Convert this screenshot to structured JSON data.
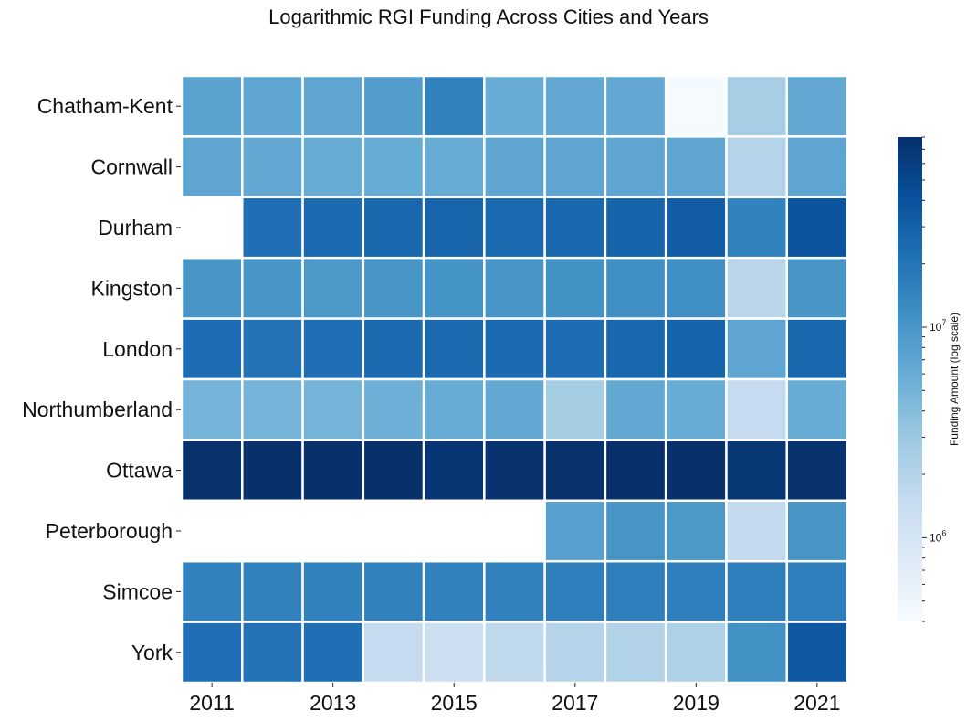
{
  "chart_data": {
    "type": "heatmap",
    "title": "Logarithmic RGI Funding Across Cities and Years",
    "colorbar_label": "Funding Amount (log scale)",
    "colorbar_scale": "log",
    "colorbar_range": [
      400000,
      80000000
    ],
    "colorbar_ticks": [
      {
        "value": 1000000,
        "base": "10",
        "exp": "6"
      },
      {
        "value": 10000000,
        "base": "10",
        "exp": "7"
      }
    ],
    "colormap": [
      "#f7fbff",
      "#deebf7",
      "#c6dbef",
      "#9ecae1",
      "#6baed6",
      "#4292c6",
      "#2171b5",
      "#08519c",
      "#08306b"
    ],
    "missing_color": "#ffffff",
    "years": [
      2011,
      2012,
      2013,
      2014,
      2015,
      2016,
      2017,
      2018,
      2019,
      2020,
      2021
    ],
    "x_tick_labels": [
      "2011",
      "",
      "2013",
      "",
      "2015",
      "",
      "2017",
      "",
      "2019",
      "",
      "2021"
    ],
    "cities": [
      "Chatham-Kent",
      "Cornwall",
      "Durham",
      "Kingston",
      "London",
      "Northumberland",
      "Ottawa",
      "Peterborough",
      "Simcoe",
      "York"
    ],
    "values": [
      [
        7500000,
        7000000,
        7000000,
        8500000,
        15000000,
        6000000,
        6500000,
        6500000,
        420000,
        2500000,
        6500000
      ],
      [
        7000000,
        6500000,
        6000000,
        6000000,
        6000000,
        7000000,
        7000000,
        7000000,
        7000000,
        2000000,
        7000000
      ],
      [
        null,
        22000000,
        24000000,
        26000000,
        27000000,
        25000000,
        26000000,
        28000000,
        32000000,
        15000000,
        38000000
      ],
      [
        10000000,
        10000000,
        9500000,
        10000000,
        10500000,
        10000000,
        11000000,
        11500000,
        11500000,
        1800000,
        10000000
      ],
      [
        23000000,
        21000000,
        22000000,
        25000000,
        25000000,
        24000000,
        23000000,
        26000000,
        28000000,
        7000000,
        26000000
      ],
      [
        5000000,
        5000000,
        5000000,
        5500000,
        6000000,
        6500000,
        2600000,
        6500000,
        6000000,
        1500000,
        6000000
      ],
      [
        78000000,
        80000000,
        80000000,
        82000000,
        72000000,
        76000000,
        78000000,
        80000000,
        80000000,
        70000000,
        76000000
      ],
      [
        null,
        null,
        null,
        null,
        null,
        null,
        8000000,
        10000000,
        9500000,
        1600000,
        10000000
      ],
      [
        15000000,
        15000000,
        15000000,
        15500000,
        15500000,
        15500000,
        16000000,
        16000000,
        16000000,
        16000000,
        16000000
      ],
      [
        22000000,
        21000000,
        22000000,
        1500000,
        1300000,
        1700000,
        2000000,
        2100000,
        2200000,
        11000000,
        35000000
      ]
    ]
  }
}
